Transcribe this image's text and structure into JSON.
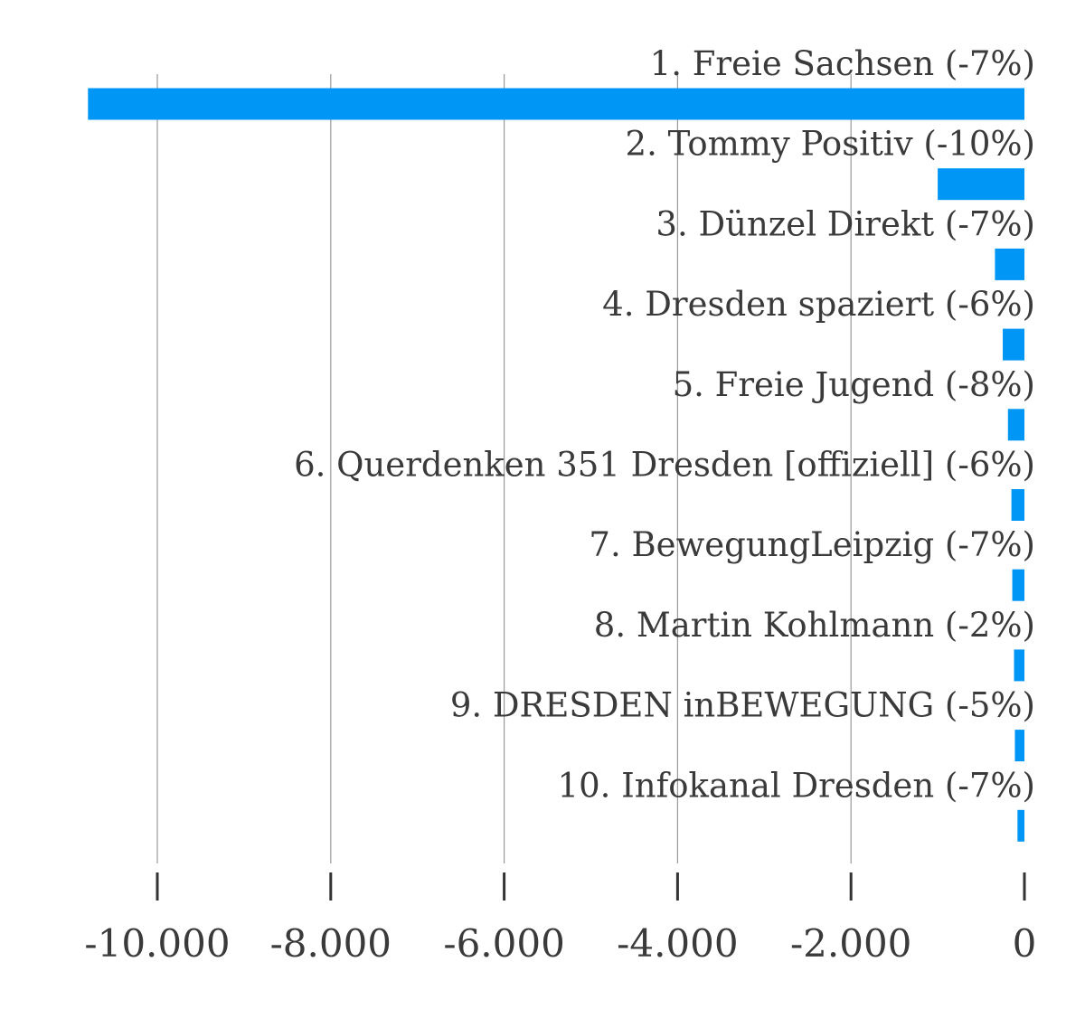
{
  "chart_data": {
    "type": "bar",
    "orientation": "horizontal",
    "categories": [
      "1. Freie Sachsen (-7%)",
      "2. Tommy Positiv (-10%)",
      "3. Dünzel Direkt (-7%)",
      "4. Dresden spaziert (-6%)",
      "5. Freie Jugend  (-8%)",
      "6. Querdenken 351 Dresden [offiziell] (-6%)",
      "7. BewegungLeipzig (-7%)",
      "8. Martin Kohlmann (-2%)",
      "9. DRESDEN  inBEWEGUNG (-5%)",
      "10. Infokanal Dresden (-7%)"
    ],
    "values": [
      -10800,
      -1000,
      -340,
      -250,
      -190,
      -150,
      -140,
      -120,
      -110,
      -80
    ],
    "xlim": [
      -10800,
      0
    ],
    "xticks": [
      -10000,
      -8000,
      -6000,
      -4000,
      -2000,
      0
    ],
    "xtick_labels": [
      "-10.000",
      "-8.000",
      "-6.000",
      "-4.000",
      "-2.000",
      "0"
    ],
    "grid": true,
    "colors": {
      "bar": "#0096f5",
      "grid": "#9a9a9a",
      "text": "#3a3a3a"
    }
  }
}
